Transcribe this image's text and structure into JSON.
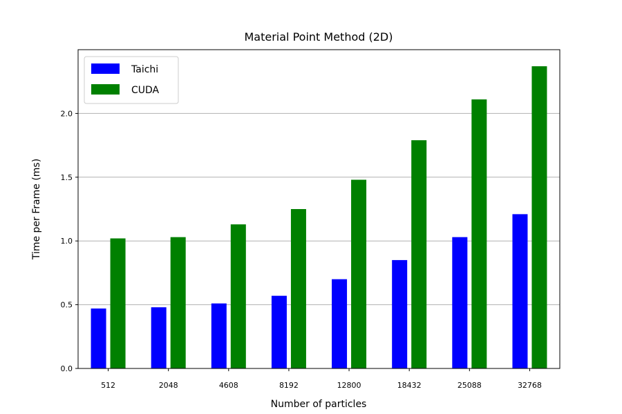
{
  "chart_data": {
    "type": "bar",
    "title": "Material Point Method (2D)",
    "xlabel": "Number of particles",
    "ylabel": "Time per Frame (ms)",
    "categories": [
      "512",
      "2048",
      "4608",
      "8192",
      "12800",
      "18432",
      "25088",
      "32768"
    ],
    "series": [
      {
        "name": "Taichi",
        "color": "#0000ff",
        "values": [
          0.47,
          0.48,
          0.51,
          0.57,
          0.7,
          0.85,
          1.03,
          1.21
        ]
      },
      {
        "name": "CUDA",
        "color": "#008000",
        "values": [
          1.02,
          1.03,
          1.13,
          1.25,
          1.48,
          1.79,
          2.11,
          2.37
        ]
      }
    ],
    "ylim": [
      0,
      2.5
    ],
    "yticks": [
      "0.0",
      "0.5",
      "1.0",
      "1.5",
      "2.0"
    ],
    "grid": "horizontal",
    "legend_position": "top-left"
  }
}
